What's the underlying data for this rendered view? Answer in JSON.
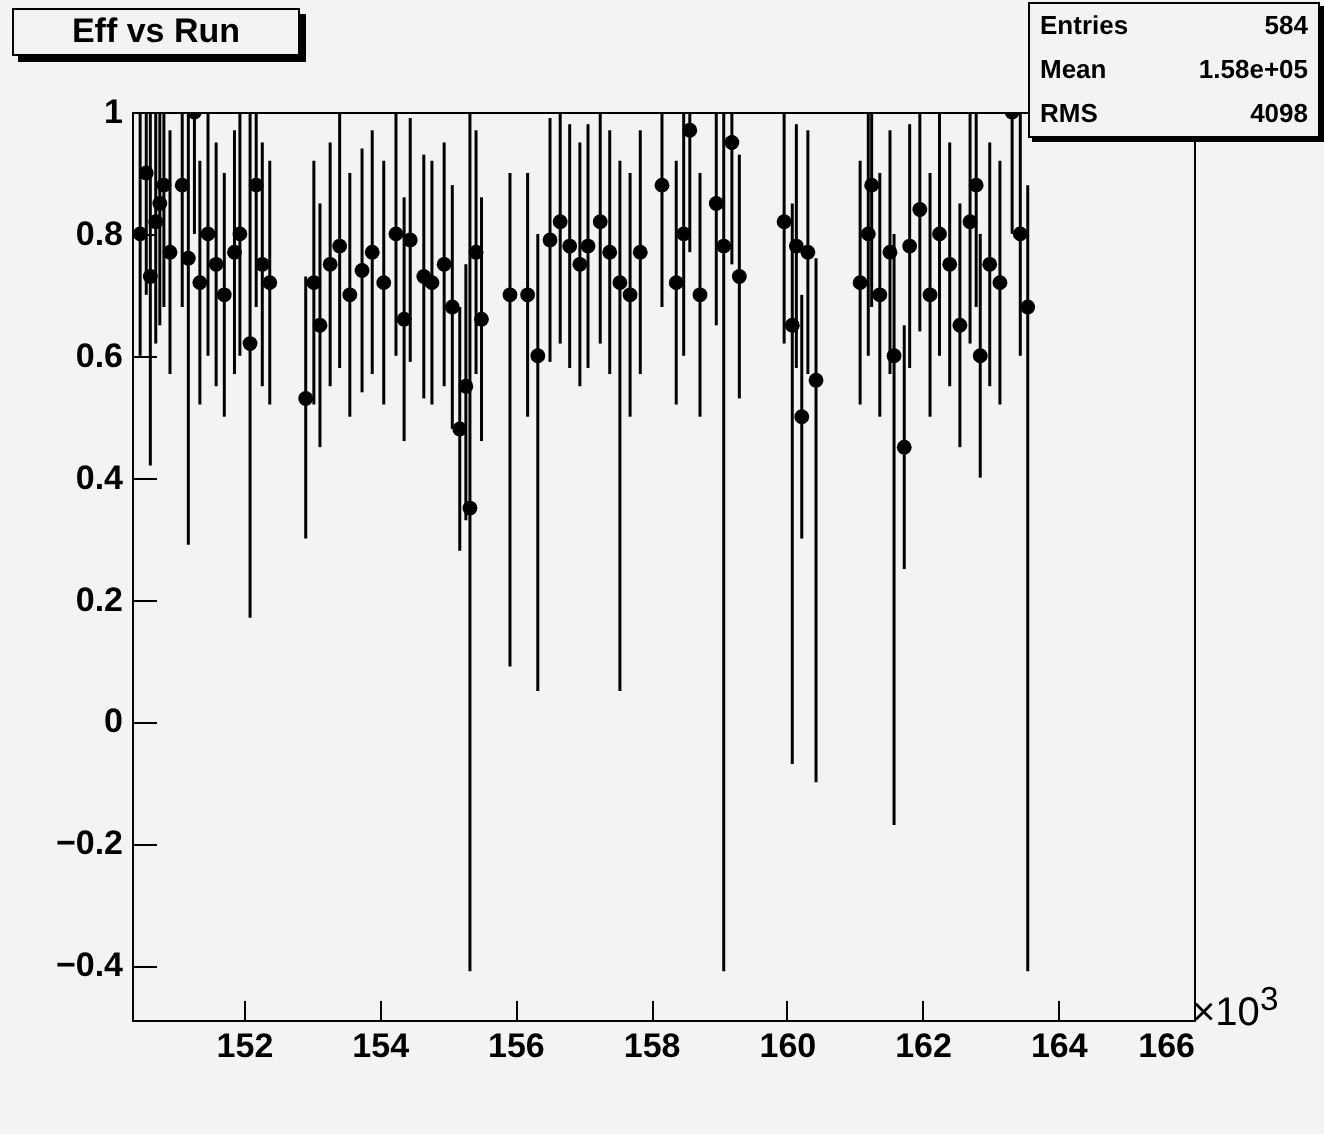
{
  "chart_data": {
    "type": "scatter",
    "title": "Eff vs Run",
    "marker": "circle",
    "color": "#000000",
    "xlim": [
      150.35,
      166
    ],
    "xticks": [
      152,
      154,
      156,
      158,
      160,
      162,
      164,
      166
    ],
    "ylim": [
      -0.49,
      1
    ],
    "yticks": [
      -0.4,
      -0.2,
      0,
      0.2,
      0.4,
      0.6,
      0.8,
      1
    ],
    "annotations": [
      "Entries 584",
      "Mean 1.58e+05",
      "RMS 4098",
      "×10$^{3}$"
    ],
    "x": [
      150.47,
      150.56,
      150.62,
      150.7,
      150.76,
      150.82,
      150.91,
      151.09,
      151.18,
      151.27,
      151.35,
      151.47,
      151.59,
      151.71,
      151.86,
      151.94,
      152.09,
      152.18,
      152.27,
      152.38,
      152.91,
      153.03,
      153.12,
      153.27,
      153.41,
      153.56,
      153.74,
      153.89,
      154.06,
      154.24,
      154.36,
      154.45,
      154.65,
      154.77,
      154.95,
      155.07,
      155.18,
      155.27,
      155.33,
      155.42,
      155.5,
      155.92,
      156.18,
      156.33,
      156.51,
      156.66,
      156.8,
      156.95,
      157.07,
      157.25,
      157.39,
      157.54,
      157.69,
      157.84,
      158.16,
      158.37,
      158.48,
      158.57,
      158.72,
      158.96,
      159.07,
      159.19,
      159.3,
      159.96,
      160.08,
      160.14,
      160.22,
      160.31,
      160.43,
      161.08,
      161.2,
      161.25,
      161.37,
      161.52,
      161.58,
      161.73,
      161.81,
      161.96,
      162.11,
      162.25,
      162.4,
      162.55,
      162.7,
      162.79,
      162.85,
      162.99,
      163.14,
      163.32,
      163.44,
      163.55
    ],
    "values": [
      0.8,
      0.9,
      0.73,
      0.82,
      0.85,
      0.88,
      0.77,
      0.88,
      0.76,
      1,
      0.72,
      0.8,
      0.75,
      0.7,
      0.77,
      0.8,
      0.62,
      0.88,
      0.75,
      0.72,
      0.53,
      0.72,
      0.65,
      0.75,
      0.78,
      0.7,
      0.74,
      0.77,
      0.72,
      0.8,
      0.66,
      0.79,
      0.73,
      0.72,
      0.75,
      0.68,
      0.48,
      0.55,
      0.35,
      0.77,
      0.66,
      0.7,
      0.7,
      0.6,
      0.79,
      0.82,
      0.78,
      0.75,
      0.78,
      0.82,
      0.77,
      0.72,
      0.7,
      0.77,
      0.88,
      0.72,
      0.8,
      0.97,
      0.7,
      0.85,
      0.78,
      0.95,
      0.73,
      0.82,
      0.65,
      0.78,
      0.5,
      0.77,
      0.56,
      0.72,
      0.8,
      0.88,
      0.7,
      0.77,
      0.6,
      0.45,
      0.78,
      0.84,
      0.7,
      0.8,
      0.75,
      0.65,
      0.82,
      0.88,
      0.6,
      0.75,
      0.72,
      1,
      0.8,
      0.68
    ],
    "errors": [
      [
        0.6,
        1
      ],
      [
        0.7,
        1
      ],
      [
        0.42,
        1
      ],
      [
        0.62,
        1
      ],
      [
        0.65,
        1
      ],
      [
        0.68,
        1
      ],
      [
        0.57,
        0.97
      ],
      [
        0.68,
        1
      ],
      [
        0.29,
        1
      ],
      [
        0.8,
        1
      ],
      [
        0.52,
        0.92
      ],
      [
        0.6,
        1
      ],
      [
        0.55,
        0.95
      ],
      [
        0.5,
        0.9
      ],
      [
        0.57,
        0.97
      ],
      [
        0.6,
        1
      ],
      [
        0.17,
        1
      ],
      [
        0.68,
        1
      ],
      [
        0.55,
        0.95
      ],
      [
        0.52,
        0.92
      ],
      [
        0.3,
        0.73
      ],
      [
        0.52,
        0.92
      ],
      [
        0.45,
        0.85
      ],
      [
        0.55,
        0.95
      ],
      [
        0.58,
        1
      ],
      [
        0.5,
        0.9
      ],
      [
        0.54,
        0.94
      ],
      [
        0.57,
        0.97
      ],
      [
        0.52,
        0.92
      ],
      [
        0.6,
        1
      ],
      [
        0.46,
        0.86
      ],
      [
        0.59,
        0.99
      ],
      [
        0.53,
        0.93
      ],
      [
        0.52,
        0.92
      ],
      [
        0.55,
        0.95
      ],
      [
        0.48,
        0.88
      ],
      [
        0.28,
        0.68
      ],
      [
        0.33,
        0.75
      ],
      [
        -0.41,
        1
      ],
      [
        0.57,
        0.97
      ],
      [
        0.46,
        0.86
      ],
      [
        0.09,
        0.9
      ],
      [
        0.5,
        0.9
      ],
      [
        0.05,
        0.8
      ],
      [
        0.59,
        0.99
      ],
      [
        0.62,
        1
      ],
      [
        0.58,
        0.98
      ],
      [
        0.55,
        0.95
      ],
      [
        0.58,
        0.98
      ],
      [
        0.62,
        1
      ],
      [
        0.57,
        0.97
      ],
      [
        0.05,
        0.92
      ],
      [
        0.5,
        0.9
      ],
      [
        0.57,
        0.97
      ],
      [
        0.68,
        1
      ],
      [
        0.52,
        0.92
      ],
      [
        0.6,
        1
      ],
      [
        0.77,
        1
      ],
      [
        0.5,
        0.9
      ],
      [
        0.65,
        1
      ],
      [
        -0.41,
        1
      ],
      [
        0.75,
        1
      ],
      [
        0.53,
        0.93
      ],
      [
        0.62,
        1
      ],
      [
        -0.07,
        0.85
      ],
      [
        0.58,
        0.98
      ],
      [
        0.3,
        0.7
      ],
      [
        0.57,
        0.97
      ],
      [
        -0.1,
        0.76
      ],
      [
        0.52,
        0.92
      ],
      [
        0.6,
        1
      ],
      [
        0.68,
        1
      ],
      [
        0.5,
        0.9
      ],
      [
        0.57,
        0.97
      ],
      [
        -0.17,
        0.8
      ],
      [
        0.25,
        0.65
      ],
      [
        0.58,
        0.98
      ],
      [
        0.64,
        1
      ],
      [
        0.5,
        0.9
      ],
      [
        0.6,
        1
      ],
      [
        0.55,
        0.95
      ],
      [
        0.45,
        0.85
      ],
      [
        0.62,
        1
      ],
      [
        0.68,
        1
      ],
      [
        0.4,
        0.8
      ],
      [
        0.55,
        0.95
      ],
      [
        0.52,
        0.92
      ],
      [
        0.8,
        1
      ],
      [
        0.6,
        1
      ],
      [
        -0.41,
        0.88
      ]
    ]
  }
}
